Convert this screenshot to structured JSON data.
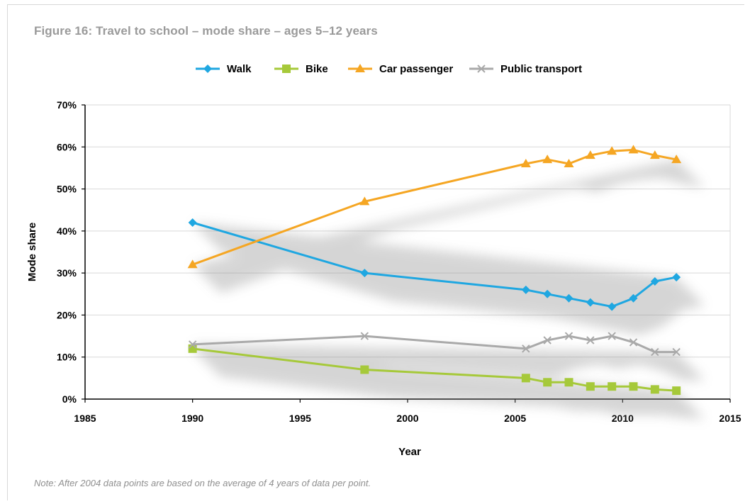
{
  "title": "Figure 16: Travel to school – mode share – ages 5–12 years",
  "note": "Note: After 2004 data points are based on the average of 4 years of data per point.",
  "colors": {
    "walk": "#1fa7e1",
    "bike": "#a6c93a",
    "car": "#f5a623",
    "public": "#a9a9a9",
    "grid": "#d9d9d9",
    "axis": "#000000"
  },
  "chart_data": {
    "type": "line",
    "xlabel": "Year",
    "ylabel": "Mode share",
    "xlim": [
      1985,
      2015
    ],
    "ylim": [
      0,
      70
    ],
    "x_ticks": [
      "1985",
      "1990",
      "1995",
      "2000",
      "2005",
      "2010",
      "2015"
    ],
    "y_ticks": [
      "0%",
      "10%",
      "20%",
      "30%",
      "40%",
      "50%",
      "60%",
      "70%"
    ],
    "grid": "horizontal",
    "legend_position": "top-center",
    "series": [
      {
        "name": "Walk",
        "marker": "diamond",
        "points": [
          [
            1990,
            42
          ],
          [
            1998,
            30
          ],
          [
            2005.5,
            26
          ],
          [
            2006.5,
            25
          ],
          [
            2007.5,
            24
          ],
          [
            2008.5,
            23
          ],
          [
            2009.5,
            22
          ],
          [
            2010.5,
            24
          ],
          [
            2011.5,
            28
          ],
          [
            2012.5,
            29
          ]
        ]
      },
      {
        "name": "Bike",
        "marker": "square",
        "points": [
          [
            1990,
            12
          ],
          [
            1998,
            7
          ],
          [
            2005.5,
            5
          ],
          [
            2006.5,
            4
          ],
          [
            2007.5,
            4
          ],
          [
            2008.5,
            3
          ],
          [
            2009.5,
            3
          ],
          [
            2010.5,
            3
          ],
          [
            2011.5,
            2.3
          ],
          [
            2012.5,
            2
          ]
        ]
      },
      {
        "name": "Car passenger",
        "marker": "triangle",
        "points": [
          [
            1990,
            32
          ],
          [
            1998,
            47
          ],
          [
            2005.5,
            56
          ],
          [
            2006.5,
            57
          ],
          [
            2007.5,
            56
          ],
          [
            2008.5,
            58
          ],
          [
            2009.5,
            59
          ],
          [
            2010.5,
            59.3
          ],
          [
            2011.5,
            58
          ],
          [
            2012.5,
            57
          ]
        ]
      },
      {
        "name": "Public transport",
        "marker": "x",
        "points": [
          [
            1990,
            13
          ],
          [
            1998,
            15
          ],
          [
            2005.5,
            12
          ],
          [
            2006.5,
            14
          ],
          [
            2007.5,
            15
          ],
          [
            2008.5,
            14
          ],
          [
            2009.5,
            15
          ],
          [
            2010.5,
            13.5
          ],
          [
            2011.5,
            11.2
          ],
          [
            2012.5,
            11.2
          ]
        ]
      }
    ]
  }
}
